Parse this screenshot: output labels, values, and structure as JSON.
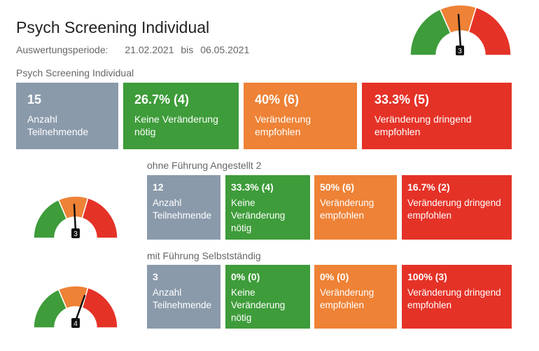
{
  "header": {
    "title": "Psych Screening Individual",
    "period_label": "Auswertungsperiode:",
    "period_from": "21.02.2021",
    "period_sep": "bis",
    "period_to": "06.05.2021"
  },
  "colors": {
    "participants": "#8a9aab",
    "no_change": "#3e9c3a",
    "change": "#ee8236",
    "urgent": "#e53227"
  },
  "groups": [
    {
      "label": "Psych Screening Individual",
      "gauge_value": "3",
      "cards": [
        {
          "value": "15",
          "label": "Anzahl Teilnehmende"
        },
        {
          "value": "26.7% (4)",
          "label": "Keine Veränderung nötig"
        },
        {
          "value": "40% (6)",
          "label": "Veränderung empfohlen"
        },
        {
          "value": "33.3% (5)",
          "label": "Veränderung dringend empfohlen"
        }
      ]
    },
    {
      "label": "ohne Führung Angestellt 2",
      "gauge_value": "3",
      "cards": [
        {
          "value": "12",
          "label": "Anzahl Teilnehmende"
        },
        {
          "value": "33.3% (4)",
          "label": "Keine Veränderung nötig"
        },
        {
          "value": "50% (6)",
          "label": "Veränderung empfohlen"
        },
        {
          "value": "16.7% (2)",
          "label": "Veränderung dringend empfohlen"
        }
      ]
    },
    {
      "label": "mit Führung Selbstständig",
      "gauge_value": "4",
      "cards": [
        {
          "value": "3",
          "label": "Anzahl Teilnehmende"
        },
        {
          "value": "0% (0)",
          "label": "Keine Veränderung nötig"
        },
        {
          "value": "0% (0)",
          "label": "Veränderung empfohlen"
        },
        {
          "value": "100% (3)",
          "label": "Veränderung dringend empfohlen"
        }
      ]
    }
  ]
}
